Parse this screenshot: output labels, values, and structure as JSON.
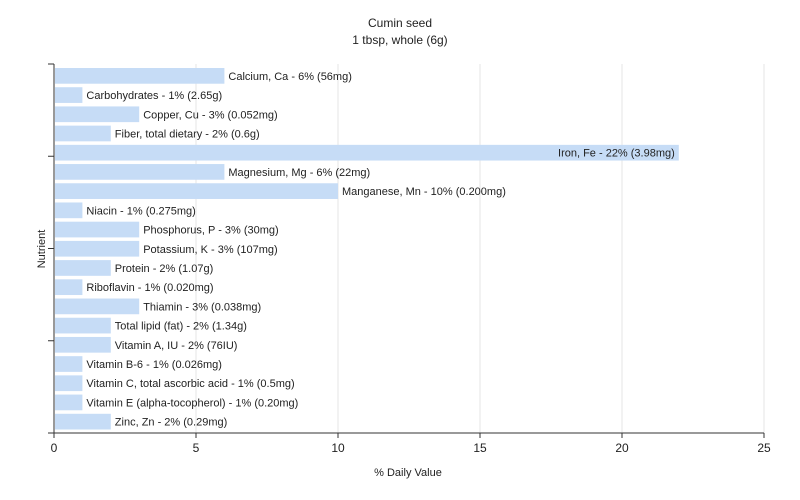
{
  "chart_data": {
    "type": "bar",
    "orientation": "horizontal",
    "title": "Cumin seed",
    "subtitle": "1 tbsp, whole (6g)",
    "xlabel": "% Daily Value",
    "ylabel": "Nutrient",
    "xlim": [
      0,
      25
    ],
    "xticks": [
      0,
      5,
      10,
      15,
      20,
      25
    ],
    "grid": "vertical",
    "legend": "none",
    "bar_color": "#c6dcf6",
    "categories": [
      "Calcium, Ca",
      "Carbohydrates",
      "Copper, Cu",
      "Fiber, total dietary",
      "Iron, Fe",
      "Magnesium, Mg",
      "Manganese, Mn",
      "Niacin",
      "Phosphorus, P",
      "Potassium, K",
      "Protein",
      "Riboflavin",
      "Thiamin",
      "Total lipid (fat)",
      "Vitamin A, IU",
      "Vitamin B-6",
      "Vitamin C, total ascorbic acid",
      "Vitamin E (alpha-tocopherol)",
      "Zinc, Zn"
    ],
    "values": [
      6,
      1,
      3,
      2,
      22,
      6,
      10,
      1,
      3,
      3,
      2,
      1,
      3,
      2,
      2,
      1,
      1,
      1,
      2
    ],
    "data_labels": [
      "Calcium, Ca - 6% (56mg)",
      "Carbohydrates - 1% (2.65g)",
      "Copper, Cu - 3% (0.052mg)",
      "Fiber, total dietary - 2% (0.6g)",
      "Iron, Fe - 22% (3.98mg)",
      "Magnesium, Mg - 6% (22mg)",
      "Manganese, Mn - 10% (0.200mg)",
      "Niacin - 1% (0.275mg)",
      "Phosphorus, P - 3% (30mg)",
      "Potassium, K - 3% (107mg)",
      "Protein - 2% (1.07g)",
      "Riboflavin - 1% (0.020mg)",
      "Thiamin - 3% (0.038mg)",
      "Total lipid (fat) - 2% (1.34g)",
      "Vitamin A, IU - 2% (76IU)",
      "Vitamin B-6 - 1% (0.026mg)",
      "Vitamin C, total ascorbic acid - 1% (0.5mg)",
      "Vitamin E (alpha-tocopherol) - 1% (0.20mg)",
      "Zinc, Zn - 2% (0.29mg)"
    ]
  }
}
